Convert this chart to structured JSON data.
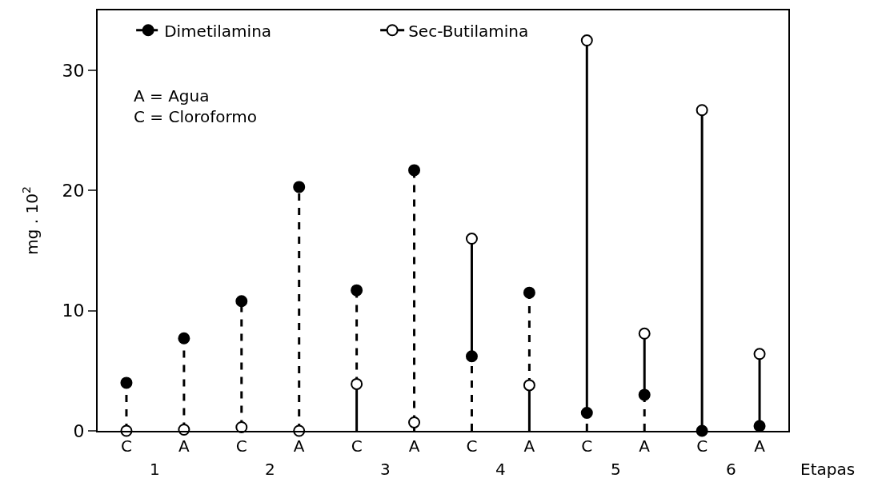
{
  "chart_data": {
    "type": "lollipop",
    "categories": [
      "C",
      "A",
      "C",
      "A",
      "C",
      "A",
      "C",
      "A",
      "C",
      "A",
      "C",
      "A"
    ],
    "series": [
      {
        "name": "Dimetilamina",
        "color": "#000000",
        "marker": "circle",
        "line_style": "dashed",
        "values": [
          4.0,
          7.7,
          10.8,
          20.3,
          11.7,
          21.7,
          6.2,
          11.5,
          1.5,
          3.0,
          0.0,
          0.4
        ]
      },
      {
        "name": "Sec-Butilamina",
        "color": "#000000",
        "marker": "circle-open",
        "line_style": "solid",
        "values": [
          0.0,
          0.1,
          0.3,
          0.0,
          3.9,
          0.7,
          16.0,
          3.8,
          32.5,
          8.1,
          26.7,
          6.4
        ]
      }
    ],
    "ylabel": "mg . 10$^{2}$",
    "xlabel": "Etapas",
    "ylim": [
      0,
      35
    ],
    "yticks": [
      0,
      10,
      20,
      30
    ],
    "annotations": [
      "A = Agua",
      "C = Cloroformo",
      "1",
      "2",
      "3",
      "4",
      "5",
      "6"
    ],
    "legend": "top left"
  }
}
